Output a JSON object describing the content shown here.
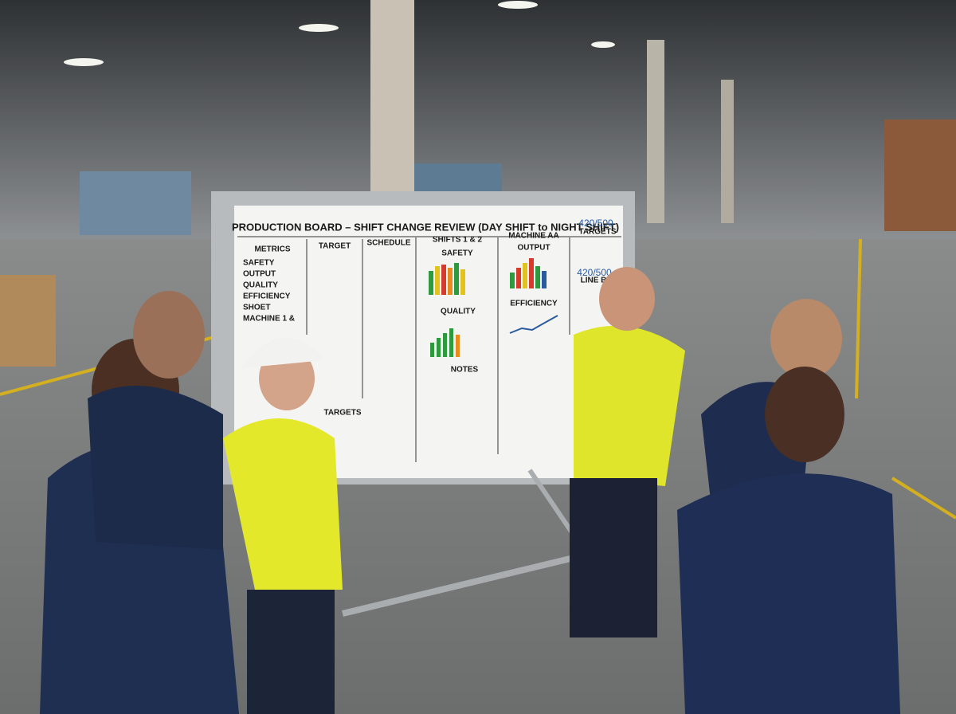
{
  "board": {
    "title": "PRODUCTION BOARD – SHIFT CHANGE REVIEW (DAY SHIFT to NIGHT SHIFT)",
    "headers": [
      "METRICS",
      "TARGET",
      "SCHEDULE",
      "SHIFTS 1 & 2",
      "MACHINE AA",
      "TARGETS"
    ],
    "metrics": [
      "SAFETY",
      "OUTPUT",
      "QUALITY",
      "EFFICIENCY",
      "SHOET",
      "MACHINE 1 &"
    ],
    "chart_titles": [
      "SAFETY",
      "OUTPUT",
      "QUALITY",
      "EFFICIENCY"
    ],
    "targets_column": [
      "420/500",
      "LINE B",
      "420/500"
    ],
    "notes_title": "NOTES",
    "targets_title": "TARGETS"
  }
}
